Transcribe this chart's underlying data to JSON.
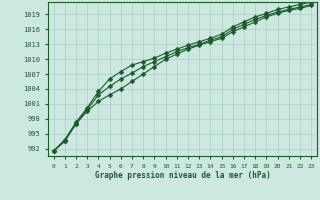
{
  "x": [
    0,
    1,
    2,
    3,
    4,
    5,
    6,
    7,
    8,
    9,
    10,
    11,
    12,
    13,
    14,
    15,
    16,
    17,
    18,
    19,
    20,
    21,
    22,
    23
  ],
  "line_top": [
    991.5,
    993.8,
    997.3,
    1000.2,
    1003.5,
    1006.0,
    1007.5,
    1008.8,
    1009.5,
    1010.2,
    1011.2,
    1012.0,
    1012.8,
    1013.5,
    1014.2,
    1015.0,
    1016.5,
    1017.5,
    1018.5,
    1019.2,
    1020.0,
    1020.5,
    1021.0,
    1021.5
  ],
  "line_mid": [
    991.5,
    993.5,
    997.0,
    999.8,
    1002.8,
    1004.5,
    1006.0,
    1007.2,
    1008.5,
    1009.5,
    1010.5,
    1011.5,
    1012.3,
    1013.0,
    1013.8,
    1014.5,
    1016.0,
    1017.0,
    1018.0,
    1018.8,
    1019.5,
    1020.0,
    1020.5,
    1021.0
  ],
  "line_bot": [
    991.5,
    993.5,
    997.0,
    999.5,
    1001.5,
    1002.8,
    1004.0,
    1005.5,
    1007.0,
    1008.5,
    1010.0,
    1011.0,
    1012.0,
    1012.8,
    1013.5,
    1014.2,
    1015.5,
    1016.5,
    1017.5,
    1018.5,
    1019.2,
    1019.8,
    1020.2,
    1020.8
  ],
  "yticks": [
    992,
    995,
    998,
    1001,
    1004,
    1007,
    1010,
    1013,
    1016,
    1019
  ],
  "xticks": [
    0,
    1,
    2,
    3,
    4,
    5,
    6,
    7,
    8,
    9,
    10,
    11,
    12,
    13,
    14,
    15,
    16,
    17,
    18,
    19,
    20,
    21,
    22,
    23
  ],
  "ylim": [
    990.5,
    1021.5
  ],
  "xlim": [
    -0.5,
    23.5
  ],
  "bg_color": "#cce8e0",
  "line_color": "#1a5c2a",
  "grid_color": "#aacfc8",
  "xlabel": "Graphe pression niveau de la mer (hPa)",
  "xlabel_color": "#1a5c2a",
  "tick_color": "#1a5c2a",
  "fig_width": 3.2,
  "fig_height": 2.0,
  "dpi": 100
}
